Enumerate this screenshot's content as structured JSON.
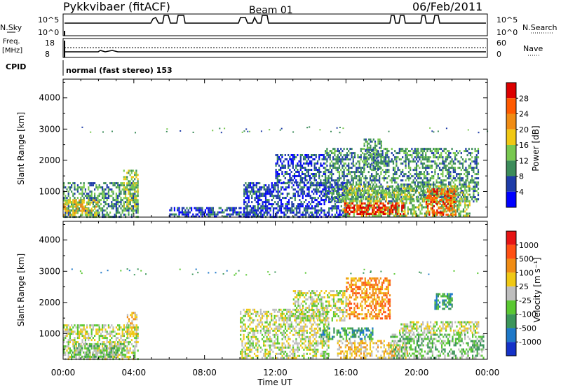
{
  "header": {
    "title": "Pykkvibaer (fitACF)",
    "beam": "Beam 01",
    "date": "06/Feb/2011"
  },
  "strip": {
    "left_label_1": "N.Sky",
    "left_ticks_1": [
      "10^5",
      "10^0"
    ],
    "right_ticks_1": [
      "10^5",
      "10^0"
    ],
    "right_label_1": "N.Search",
    "left_label_2a": "Freq.",
    "left_label_2b": "[MHz]",
    "left_ticks_2": [
      "18",
      "8"
    ],
    "right_ticks_2": [
      "60",
      "0"
    ],
    "right_label_2": "Nave",
    "cpid_label": "CPID",
    "cpid_text": "normal (fast stereo) 153"
  },
  "chart_data": [
    {
      "type": "heatmap",
      "ylabel": "Slant Range [km]",
      "yticks": [
        1000,
        2000,
        3000,
        4000
      ],
      "ylim": [
        180,
        4600
      ],
      "xlim": [
        0,
        24
      ],
      "colorbar": {
        "label": "Power [dB]",
        "ticks": [
          "4",
          "8",
          "12",
          "16",
          "20",
          "24",
          "28"
        ],
        "colors": [
          "#0000ff",
          "#1e3ca8",
          "#3c8c5a",
          "#78c850",
          "#f0c814",
          "#f08c14",
          "#ff5a00",
          "#dc0000"
        ]
      },
      "echo_regions": [
        {
          "t0": 0.0,
          "t1": 4.2,
          "r0": 200,
          "r1": 1300,
          "level": 2
        },
        {
          "t0": 0.0,
          "t1": 2.0,
          "r0": 250,
          "r1": 750,
          "level": 4
        },
        {
          "t0": 3.4,
          "t1": 4.2,
          "r0": 400,
          "r1": 1700,
          "level": 3
        },
        {
          "t0": 6.0,
          "t1": 11.2,
          "r0": 200,
          "r1": 500,
          "level": 1
        },
        {
          "t0": 10.2,
          "t1": 16.0,
          "r0": 200,
          "r1": 1300,
          "level": 1
        },
        {
          "t0": 12.0,
          "t1": 14.8,
          "r0": 1300,
          "r1": 2200,
          "level": 1
        },
        {
          "t0": 14.8,
          "t1": 23.5,
          "r0": 700,
          "r1": 2400,
          "level": 2
        },
        {
          "t0": 15.8,
          "t1": 23.0,
          "r0": 200,
          "r1": 1200,
          "level": 3
        },
        {
          "t0": 15.9,
          "t1": 19.3,
          "r0": 300,
          "r1": 650,
          "level": 7
        },
        {
          "t0": 20.5,
          "t1": 22.2,
          "r0": 250,
          "r1": 1100,
          "level": 6
        },
        {
          "t0": 17.0,
          "t1": 18.0,
          "r0": 1700,
          "r1": 2700,
          "level": 2
        }
      ]
    },
    {
      "type": "heatmap",
      "ylabel": "Slant Range [km]",
      "yticks": [
        1000,
        2000,
        3000,
        4000
      ],
      "ylim": [
        180,
        4600
      ],
      "xlim": [
        0,
        24
      ],
      "xticks": [
        "00:00",
        "04:00",
        "08:00",
        "12:00",
        "16:00",
        "20:00",
        "00:00"
      ],
      "xlabel": "Time UT",
      "colorbar": {
        "label": "Velocity [m s⁻¹]",
        "ticks": [
          "1000",
          "500",
          "100",
          "25",
          "-25",
          "-100",
          "-500",
          "-1000"
        ],
        "colors": [
          "#1432c8",
          "#1e78c8",
          "#3c965a",
          "#5ac832",
          "#bebebe",
          "#f0c814",
          "#f08c14",
          "#ff5014",
          "#e61414"
        ]
      },
      "echo_regions": [
        {
          "t0": 0.0,
          "t1": 4.2,
          "r0": 200,
          "r1": 1300,
          "level": 4
        },
        {
          "t0": 0.5,
          "t1": 3.5,
          "r0": 250,
          "r1": 700,
          "level": 3
        },
        {
          "t0": 3.6,
          "t1": 4.2,
          "r0": 900,
          "r1": 1700,
          "level": 5
        },
        {
          "t0": 10.0,
          "t1": 15.0,
          "r0": 200,
          "r1": 1800,
          "level": 4
        },
        {
          "t0": 13.0,
          "t1": 16.0,
          "r0": 1400,
          "r1": 2400,
          "level": 4
        },
        {
          "t0": 15.5,
          "t1": 19.5,
          "r0": 200,
          "r1": 800,
          "level": 5
        },
        {
          "t0": 16.0,
          "t1": 18.5,
          "r0": 1500,
          "r1": 2800,
          "level": 6
        },
        {
          "t0": 18.5,
          "t1": 23.8,
          "r0": 250,
          "r1": 1000,
          "level": 3
        },
        {
          "t0": 19.0,
          "t1": 23.5,
          "r0": 1000,
          "r1": 1400,
          "level": 4
        },
        {
          "t0": 14.5,
          "t1": 17.5,
          "r0": 800,
          "r1": 1200,
          "level": 2
        },
        {
          "t0": 21.0,
          "t1": 22.0,
          "r0": 1800,
          "r1": 2300,
          "level": 2
        }
      ]
    }
  ]
}
